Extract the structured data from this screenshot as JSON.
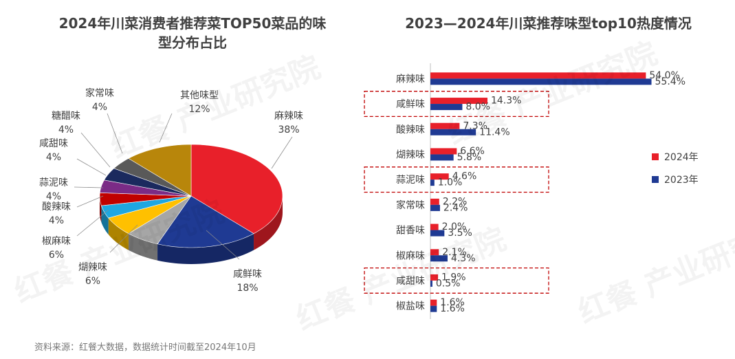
{
  "titles": {
    "left_line1": "2024年川菜消费者推荐菜TOP50菜品的味",
    "left_line2": "型分布占比",
    "right": "2023—2024年川菜推荐味型top10热度情况"
  },
  "source": "资料来源：红餐大数据，数据统计时间截至2024年10月",
  "watermark": "红餐 产业研究院",
  "chart_data": [
    {
      "type": "pie",
      "title": "2024年川菜消费者推荐菜TOP50菜品的味型分布占比",
      "slices": [
        {
          "label": "麻辣味",
          "value": 38,
          "value_label": "38%",
          "color": "#e8202a"
        },
        {
          "label": "咸鲜味",
          "value": 18,
          "value_label": "18%",
          "color": "#1f3a93"
        },
        {
          "label": "煳辣味",
          "value": 6,
          "value_label": "6%",
          "color": "#a6a6a6"
        },
        {
          "label": "椒麻味",
          "value": 6,
          "value_label": "6%",
          "color": "#ffc000"
        },
        {
          "label": "酸辣味",
          "value": 4,
          "value_label": "4%",
          "color": "#1ea7e1"
        },
        {
          "label": "蒜泥味",
          "value": 4,
          "value_label": "4%",
          "color": "#c00000"
        },
        {
          "label": "咸甜味",
          "value": 4,
          "value_label": "4%",
          "color": "#7b2b86"
        },
        {
          "label": "糖醋味",
          "value": 4,
          "value_label": "4%",
          "color": "#1b2a5e"
        },
        {
          "label": "家常味",
          "value": 4,
          "value_label": "4%",
          "color": "#595959"
        },
        {
          "label": "其他味型",
          "value": 12,
          "value_label": "12%",
          "color": "#b8860b"
        }
      ]
    },
    {
      "type": "bar",
      "orientation": "horizontal",
      "title": "2023—2024年川菜推荐味型top10热度情况",
      "categories": [
        "麻辣味",
        "咸鲜味",
        "酸辣味",
        "煳辣味",
        "蒜泥味",
        "家常味",
        "甜香味",
        "椒麻味",
        "咸甜味",
        "椒盐味"
      ],
      "series": [
        {
          "name": "2024年",
          "color": "#e8202a",
          "values": [
            54.0,
            14.3,
            7.3,
            6.6,
            4.6,
            2.2,
            2.0,
            2.1,
            1.9,
            1.6
          ],
          "labels": [
            "54.0%",
            "14.3%",
            "7.3%",
            "6.6%",
            "4.6%",
            "2.2%",
            "2.0%",
            "2.1%",
            "1.9%",
            "1.6%"
          ]
        },
        {
          "name": "2023年",
          "color": "#1f3a93",
          "values": [
            55.4,
            8.0,
            11.4,
            5.8,
            1.0,
            2.4,
            3.5,
            4.3,
            0.5,
            1.6
          ],
          "labels": [
            "55.4%",
            "8.0%",
            "11.4%",
            "5.8%",
            "1.0%",
            "2.4%",
            "3.5%",
            "4.3%",
            "0.5%",
            "1.6%"
          ]
        }
      ],
      "highlighted_categories": [
        "咸鲜味",
        "蒜泥味",
        "咸甜味"
      ],
      "legend_position": "right",
      "xlim": [
        0,
        56
      ]
    }
  ]
}
